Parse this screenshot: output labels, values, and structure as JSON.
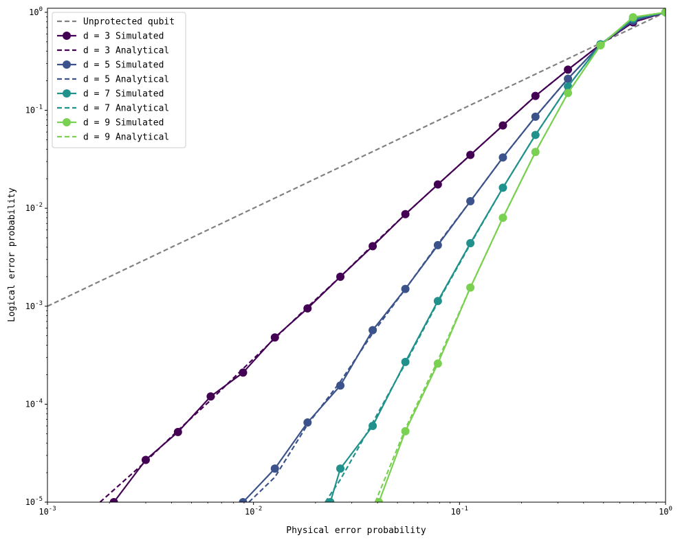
{
  "chart_data": {
    "type": "line",
    "xscale": "log",
    "yscale": "log",
    "xlabel": "Physical error probability",
    "ylabel": "Logical error probability",
    "xlim": [
      0.001,
      1
    ],
    "ylim": [
      1e-05,
      1.1
    ],
    "grid": false,
    "legend_position": "top-left",
    "x_ticks": [
      {
        "value": 0.001,
        "base": "10",
        "exp": "-3"
      },
      {
        "value": 0.01,
        "base": "10",
        "exp": "-2"
      },
      {
        "value": 0.1,
        "base": "10",
        "exp": "-1"
      },
      {
        "value": 1,
        "base": "10",
        "exp": "0"
      }
    ],
    "y_ticks": [
      {
        "value": 1e-05,
        "base": "10",
        "exp": "-5"
      },
      {
        "value": 0.0001,
        "base": "10",
        "exp": "-4"
      },
      {
        "value": 0.001,
        "base": "10",
        "exp": "-3"
      },
      {
        "value": 0.01,
        "base": "10",
        "exp": "-2"
      },
      {
        "value": 0.1,
        "base": "10",
        "exp": "-1"
      },
      {
        "value": 1,
        "base": "10",
        "exp": "0"
      }
    ],
    "series": [
      {
        "name": "Unprotected qubit",
        "style": "dashed",
        "color": "#808080",
        "markers": false,
        "x": [
          0.001,
          1
        ],
        "y": [
          0.001,
          1
        ]
      },
      {
        "name": "d = 3 Simulated",
        "style": "solid",
        "color": "#440154",
        "markers": true,
        "x": [
          0.0021,
          0.003,
          0.0043,
          0.0062,
          0.0089,
          0.0127,
          0.0183,
          0.0264,
          0.0379,
          0.0546,
          0.0785,
          0.1129,
          0.1624,
          0.2336,
          0.336,
          0.4833,
          0.6952,
          1.0
        ],
        "y": [
          1e-05,
          2.7e-05,
          5.2e-05,
          0.00012,
          0.00021,
          0.00048,
          0.00095,
          0.002,
          0.0041,
          0.0087,
          0.0175,
          0.035,
          0.07,
          0.14,
          0.26,
          0.47,
          0.79,
          1.0
        ]
      },
      {
        "name": "d = 3 Analytical",
        "style": "dashed",
        "color": "#440154",
        "markers": false,
        "x": [
          0.0018,
          0.003,
          0.0043,
          0.0062,
          0.0089,
          0.0127,
          0.0183,
          0.0264,
          0.0379,
          0.0546,
          0.0785,
          0.1129,
          0.1624,
          0.2336,
          0.336,
          0.4833,
          0.6952,
          1.0
        ],
        "y": [
          1e-05,
          2.6e-05,
          5.4e-05,
          0.00011,
          0.00023,
          0.00047,
          0.00098,
          0.002,
          0.0042,
          0.0087,
          0.0175,
          0.035,
          0.07,
          0.14,
          0.26,
          0.47,
          0.79,
          1.0
        ]
      },
      {
        "name": "d = 5 Simulated",
        "style": "solid",
        "color": "#3b528b",
        "markers": true,
        "x": [
          0.0089,
          0.0127,
          0.0183,
          0.0264,
          0.0379,
          0.0546,
          0.0785,
          0.1129,
          0.1624,
          0.2336,
          0.336,
          0.4833,
          0.6952,
          1.0
        ],
        "y": [
          1e-05,
          2.2e-05,
          6.5e-05,
          0.000155,
          0.00057,
          0.0015,
          0.0042,
          0.0118,
          0.033,
          0.086,
          0.21,
          0.47,
          0.82,
          1.0
        ]
      },
      {
        "name": "d = 5 Analytical",
        "style": "dashed",
        "color": "#3b528b",
        "markers": false,
        "x": [
          0.0095,
          0.0127,
          0.0183,
          0.0264,
          0.0379,
          0.0546,
          0.0785,
          0.1129,
          0.1624,
          0.2336,
          0.336,
          0.4833,
          0.6952,
          1.0
        ],
        "y": [
          1e-05,
          1.8e-05,
          6.2e-05,
          0.00017,
          0.00053,
          0.0015,
          0.0043,
          0.0118,
          0.033,
          0.086,
          0.21,
          0.47,
          0.82,
          1.0
        ]
      },
      {
        "name": "d = 7 Simulated",
        "style": "solid",
        "color": "#21918c",
        "markers": true,
        "x": [
          0.0236,
          0.0264,
          0.0379,
          0.0546,
          0.0785,
          0.1129,
          0.1624,
          0.2336,
          0.336,
          0.4833,
          0.6952,
          1.0
        ],
        "y": [
          1e-05,
          2.2e-05,
          6e-05,
          0.00027,
          0.00113,
          0.0044,
          0.0162,
          0.056,
          0.175,
          0.47,
          0.86,
          1.0
        ]
      },
      {
        "name": "d = 7 Analytical",
        "style": "dashed",
        "color": "#21918c",
        "markers": false,
        "x": [
          0.0223,
          0.0264,
          0.0379,
          0.0546,
          0.0785,
          0.1129,
          0.1624,
          0.2336,
          0.336,
          0.4833,
          0.6952,
          1.0
        ],
        "y": [
          1e-05,
          1.7e-05,
          6.5e-05,
          0.00026,
          0.0011,
          0.0043,
          0.0162,
          0.056,
          0.175,
          0.47,
          0.86,
          1.0
        ]
      },
      {
        "name": "d = 9 Simulated",
        "style": "solid",
        "color": "#7ad151",
        "markers": true,
        "x": [
          0.0406,
          0.0546,
          0.0785,
          0.1129,
          0.1624,
          0.2336,
          0.336,
          0.4833,
          0.6952,
          1.0
        ],
        "y": [
          1e-05,
          5.3e-05,
          0.00026,
          0.00155,
          0.008,
          0.0375,
          0.15,
          0.46,
          0.89,
          1.0
        ]
      },
      {
        "name": "d = 9 Analytical",
        "style": "dashed",
        "color": "#7ad151",
        "markers": false,
        "x": [
          0.039,
          0.0546,
          0.0785,
          0.1129,
          0.1624,
          0.2336,
          0.336,
          0.4833,
          0.6952,
          1.0
        ],
        "y": [
          1e-05,
          5.6e-05,
          0.00028,
          0.00155,
          0.008,
          0.0375,
          0.15,
          0.46,
          0.89,
          1.0
        ]
      }
    ]
  }
}
